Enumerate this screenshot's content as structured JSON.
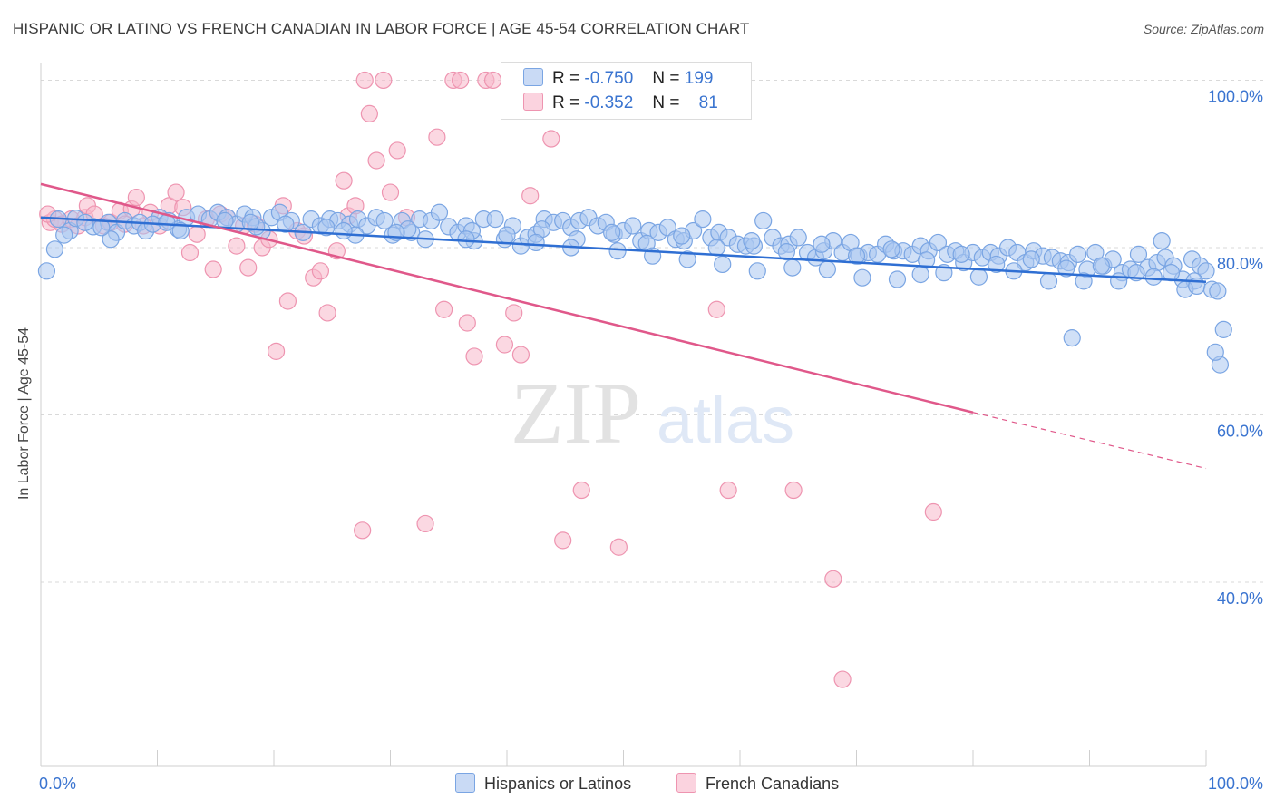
{
  "header": {
    "title": "HISPANIC OR LATINO VS FRENCH CANADIAN IN LABOR FORCE | AGE 45-54 CORRELATION CHART",
    "source": "Source: ZipAtlas.com"
  },
  "watermark": {
    "zip": "ZIP",
    "atlas": "atlas"
  },
  "legend": {
    "rows": [
      {
        "r_label": "R =",
        "r_value": "-0.750",
        "n_label": "N =",
        "n_value": "199"
      },
      {
        "r_label": "R =",
        "r_value": "-0.352",
        "n_label": "N =",
        "n_value": "81"
      }
    ]
  },
  "bottom_legend": {
    "items": [
      "Hispanics or Latinos",
      "French Canadians"
    ]
  },
  "colors": {
    "blue_fill": "#a9c6f0",
    "blue_stroke": "#7aa5e3",
    "blue_line": "#2f6fd3",
    "pink_fill": "#f7b8cb",
    "pink_stroke": "#ee94b0",
    "pink_line": "#e0588a",
    "axis_label": "#3a74d0",
    "grid": "#d9d9d9"
  },
  "chart_data": {
    "type": "scatter",
    "title": "HISPANIC OR LATINO VS FRENCH CANADIAN IN LABOR FORCE | AGE 45-54 CORRELATION CHART",
    "xlabel": "",
    "ylabel": "In Labor Force | Age 45-54",
    "xlim": [
      0,
      100
    ],
    "ylim": [
      18,
      102
    ],
    "x_tick_labels": [
      "0.0%",
      "100.0%"
    ],
    "y_ticks": [
      40,
      60,
      80,
      100
    ],
    "y_tick_labels": [
      "40.0%",
      "60.0%",
      "80.0%",
      "100.0%"
    ],
    "grid": true,
    "legend_position": "top-center",
    "series": [
      {
        "name": "Hispanics or Latinos",
        "r": -0.75,
        "n": 199,
        "trend": {
          "x": [
            0,
            100
          ],
          "y": [
            83.6,
            75.9
          ]
        },
        "points": [
          [
            0.5,
            77.2
          ],
          [
            1.2,
            79.8
          ],
          [
            2.5,
            82.0
          ],
          [
            3.0,
            83.5
          ],
          [
            4.5,
            82.5
          ],
          [
            5.8,
            83.0
          ],
          [
            6.5,
            81.8
          ],
          [
            7.2,
            83.2
          ],
          [
            8.0,
            82.6
          ],
          [
            8.5,
            83.0
          ],
          [
            9.0,
            82.0
          ],
          [
            10.2,
            83.6
          ],
          [
            11.0,
            83.2
          ],
          [
            11.8,
            82.2
          ],
          [
            12.5,
            83.6
          ],
          [
            13.5,
            84.0
          ],
          [
            14.5,
            83.4
          ],
          [
            15.2,
            84.2
          ],
          [
            16.0,
            83.6
          ],
          [
            16.8,
            82.8
          ],
          [
            17.5,
            84.0
          ],
          [
            18.2,
            83.6
          ],
          [
            19.0,
            82.0
          ],
          [
            19.8,
            83.6
          ],
          [
            20.5,
            84.2
          ],
          [
            21.5,
            83.2
          ],
          [
            22.5,
            81.8
          ],
          [
            23.2,
            83.4
          ],
          [
            24.0,
            82.6
          ],
          [
            24.8,
            83.4
          ],
          [
            25.5,
            83.2
          ],
          [
            26.5,
            82.8
          ],
          [
            27.2,
            83.4
          ],
          [
            28.0,
            82.6
          ],
          [
            28.8,
            83.6
          ],
          [
            29.5,
            83.2
          ],
          [
            30.2,
            81.5
          ],
          [
            31.0,
            83.2
          ],
          [
            31.8,
            81.8
          ],
          [
            32.5,
            83.4
          ],
          [
            33.5,
            83.2
          ],
          [
            34.2,
            84.2
          ],
          [
            35.0,
            82.5
          ],
          [
            35.8,
            81.8
          ],
          [
            36.5,
            82.6
          ],
          [
            37.2,
            80.8
          ],
          [
            38.0,
            83.4
          ],
          [
            39.0,
            83.4
          ],
          [
            39.8,
            81.0
          ],
          [
            40.5,
            82.6
          ],
          [
            41.2,
            80.2
          ],
          [
            41.8,
            81.2
          ],
          [
            42.5,
            81.6
          ],
          [
            43.2,
            83.4
          ],
          [
            44.0,
            83.0
          ],
          [
            44.8,
            83.2
          ],
          [
            45.5,
            82.4
          ],
          [
            46.2,
            83.2
          ],
          [
            47.0,
            83.6
          ],
          [
            47.8,
            82.6
          ],
          [
            48.5,
            83.0
          ],
          [
            49.2,
            81.6
          ],
          [
            50.0,
            82.0
          ],
          [
            50.8,
            82.6
          ],
          [
            51.5,
            80.8
          ],
          [
            52.2,
            82.0
          ],
          [
            53.0,
            81.8
          ],
          [
            53.8,
            82.4
          ],
          [
            54.5,
            81.0
          ],
          [
            55.2,
            80.8
          ],
          [
            56.0,
            82.0
          ],
          [
            56.8,
            83.4
          ],
          [
            57.5,
            81.2
          ],
          [
            58.2,
            81.8
          ],
          [
            59.0,
            81.2
          ],
          [
            59.8,
            80.4
          ],
          [
            60.5,
            80.2
          ],
          [
            61.2,
            80.2
          ],
          [
            62.0,
            83.2
          ],
          [
            62.8,
            81.2
          ],
          [
            63.5,
            80.2
          ],
          [
            64.2,
            80.4
          ],
          [
            65.0,
            81.2
          ],
          [
            65.8,
            79.4
          ],
          [
            66.5,
            78.8
          ],
          [
            67.2,
            79.6
          ],
          [
            68.0,
            80.8
          ],
          [
            68.8,
            79.4
          ],
          [
            69.5,
            80.6
          ],
          [
            70.2,
            79.0
          ],
          [
            71.0,
            79.4
          ],
          [
            71.8,
            79.2
          ],
          [
            72.5,
            80.4
          ],
          [
            73.2,
            79.6
          ],
          [
            74.0,
            79.6
          ],
          [
            74.8,
            79.2
          ],
          [
            75.5,
            80.2
          ],
          [
            76.2,
            79.6
          ],
          [
            77.0,
            80.6
          ],
          [
            77.8,
            79.2
          ],
          [
            78.5,
            79.6
          ],
          [
            79.2,
            78.2
          ],
          [
            80.0,
            79.4
          ],
          [
            80.8,
            78.8
          ],
          [
            81.5,
            79.4
          ],
          [
            82.2,
            79.0
          ],
          [
            83.0,
            80.0
          ],
          [
            83.8,
            79.4
          ],
          [
            84.5,
            78.2
          ],
          [
            85.2,
            79.6
          ],
          [
            86.0,
            79.0
          ],
          [
            86.8,
            78.8
          ],
          [
            87.5,
            78.4
          ],
          [
            88.2,
            78.2
          ],
          [
            89.0,
            79.2
          ],
          [
            89.8,
            77.4
          ],
          [
            90.5,
            79.4
          ],
          [
            91.2,
            77.8
          ],
          [
            92.0,
            78.6
          ],
          [
            92.8,
            77.0
          ],
          [
            93.5,
            77.4
          ],
          [
            94.2,
            79.2
          ],
          [
            95.0,
            77.6
          ],
          [
            95.8,
            78.2
          ],
          [
            96.5,
            78.8
          ],
          [
            97.2,
            77.8
          ],
          [
            98.0,
            76.2
          ],
          [
            98.8,
            78.6
          ],
          [
            99.5,
            77.8
          ],
          [
            100.0,
            77.2
          ],
          [
            2.0,
            81.5
          ],
          [
            6.0,
            81.0
          ],
          [
            12.0,
            82.0
          ],
          [
            18.5,
            82.5
          ],
          [
            27.0,
            81.5
          ],
          [
            33.0,
            81.0
          ],
          [
            40.0,
            81.5
          ],
          [
            46.0,
            81.0
          ],
          [
            52.0,
            80.5
          ],
          [
            58.0,
            80.0
          ],
          [
            64.0,
            79.5
          ],
          [
            70.0,
            79.0
          ],
          [
            76.0,
            78.5
          ],
          [
            82.0,
            78.0
          ],
          [
            88.0,
            77.5
          ],
          [
            94.0,
            77.0
          ],
          [
            99.0,
            76.0
          ],
          [
            3.8,
            83.0
          ],
          [
            9.6,
            82.8
          ],
          [
            15.8,
            83.2
          ],
          [
            21.0,
            82.8
          ],
          [
            26.0,
            82.0
          ],
          [
            31.5,
            82.2
          ],
          [
            37.0,
            82.0
          ],
          [
            43.0,
            82.2
          ],
          [
            49.0,
            81.8
          ],
          [
            55.0,
            81.4
          ],
          [
            61.0,
            80.8
          ],
          [
            67.0,
            80.4
          ],
          [
            73.0,
            79.8
          ],
          [
            79.0,
            79.2
          ],
          [
            85.0,
            78.6
          ],
          [
            91.0,
            77.8
          ],
          [
            97.0,
            77.0
          ],
          [
            92.5,
            76.0
          ],
          [
            95.5,
            76.5
          ],
          [
            96.2,
            80.8
          ],
          [
            98.2,
            75.0
          ],
          [
            99.2,
            75.4
          ],
          [
            100.5,
            75.0
          ],
          [
            101.0,
            74.8
          ],
          [
            101.5,
            70.2
          ],
          [
            101.2,
            66.0
          ],
          [
            100.8,
            67.5
          ],
          [
            88.5,
            69.2
          ],
          [
            77.5,
            77.0
          ],
          [
            80.5,
            76.5
          ],
          [
            83.5,
            77.2
          ],
          [
            86.5,
            76.0
          ],
          [
            89.5,
            76.0
          ],
          [
            70.5,
            76.4
          ],
          [
            73.5,
            76.2
          ],
          [
            75.5,
            76.8
          ],
          [
            67.5,
            77.4
          ],
          [
            64.5,
            77.6
          ],
          [
            61.5,
            77.2
          ],
          [
            58.5,
            78.0
          ],
          [
            55.5,
            78.6
          ],
          [
            52.5,
            79.0
          ],
          [
            49.5,
            79.6
          ],
          [
            45.5,
            80.0
          ],
          [
            42.5,
            80.6
          ],
          [
            36.5,
            81.0
          ],
          [
            30.5,
            81.8
          ],
          [
            24.5,
            82.4
          ],
          [
            18.0,
            83.0
          ],
          [
            10.8,
            83.0
          ],
          [
            5.2,
            82.4
          ],
          [
            1.5,
            83.4
          ]
        ]
      },
      {
        "name": "French Canadians",
        "r": -0.352,
        "n": 81,
        "trend": {
          "x": [
            0,
            80
          ],
          "y": [
            87.6,
            60.3
          ],
          "dashed_to": [
            100,
            53.6
          ]
        },
        "points": [
          [
            0.8,
            83.0
          ],
          [
            1.2,
            83.4
          ],
          [
            1.8,
            82.8
          ],
          [
            2.6,
            83.4
          ],
          [
            3.2,
            82.6
          ],
          [
            3.8,
            83.6
          ],
          [
            4.0,
            85.0
          ],
          [
            4.6,
            84.0
          ],
          [
            5.4,
            82.6
          ],
          [
            6.0,
            83.0
          ],
          [
            6.8,
            84.4
          ],
          [
            7.2,
            82.8
          ],
          [
            7.8,
            84.6
          ],
          [
            8.2,
            86.0
          ],
          [
            8.8,
            82.6
          ],
          [
            9.4,
            84.2
          ],
          [
            10.2,
            82.6
          ],
          [
            11.0,
            85.0
          ],
          [
            11.6,
            86.6
          ],
          [
            12.2,
            84.8
          ],
          [
            12.8,
            79.4
          ],
          [
            13.4,
            81.6
          ],
          [
            14.2,
            83.4
          ],
          [
            14.8,
            77.4
          ],
          [
            15.4,
            84.0
          ],
          [
            16.0,
            83.6
          ],
          [
            16.8,
            80.2
          ],
          [
            17.4,
            82.6
          ],
          [
            17.8,
            77.6
          ],
          [
            18.4,
            82.8
          ],
          [
            19.0,
            80.0
          ],
          [
            19.6,
            81.0
          ],
          [
            20.2,
            67.6
          ],
          [
            20.8,
            85.0
          ],
          [
            21.2,
            73.6
          ],
          [
            22.0,
            82.0
          ],
          [
            22.6,
            81.4
          ],
          [
            23.4,
            76.4
          ],
          [
            24.0,
            77.2
          ],
          [
            24.6,
            72.2
          ],
          [
            25.4,
            79.6
          ],
          [
            26.0,
            88.0
          ],
          [
            26.4,
            83.8
          ],
          [
            27.0,
            85.0
          ],
          [
            27.6,
            46.2
          ],
          [
            27.8,
            100.0
          ],
          [
            28.2,
            96.0
          ],
          [
            28.8,
            90.4
          ],
          [
            29.4,
            100.0
          ],
          [
            30.0,
            86.6
          ],
          [
            30.6,
            91.6
          ],
          [
            31.4,
            83.6
          ],
          [
            33.0,
            47.0
          ],
          [
            34.0,
            93.2
          ],
          [
            34.6,
            72.6
          ],
          [
            35.4,
            100.0
          ],
          [
            36.0,
            100.0
          ],
          [
            36.6,
            71.0
          ],
          [
            37.2,
            67.0
          ],
          [
            38.2,
            100.0
          ],
          [
            38.8,
            100.0
          ],
          [
            39.8,
            68.4
          ],
          [
            40.2,
            100.0
          ],
          [
            40.6,
            72.2
          ],
          [
            41.2,
            67.2
          ],
          [
            42.0,
            86.2
          ],
          [
            42.6,
            100.0
          ],
          [
            43.2,
            100.0
          ],
          [
            43.8,
            93.0
          ],
          [
            44.8,
            45.0
          ],
          [
            46.4,
            51.0
          ],
          [
            49.6,
            44.2
          ],
          [
            50.0,
            100.0
          ],
          [
            52.0,
            100.0
          ],
          [
            58.0,
            72.6
          ],
          [
            59.0,
            51.0
          ],
          [
            64.6,
            51.0
          ],
          [
            68.0,
            40.4
          ],
          [
            68.8,
            28.4
          ],
          [
            76.6,
            48.4
          ],
          [
            0.6,
            84.0
          ]
        ]
      }
    ]
  }
}
